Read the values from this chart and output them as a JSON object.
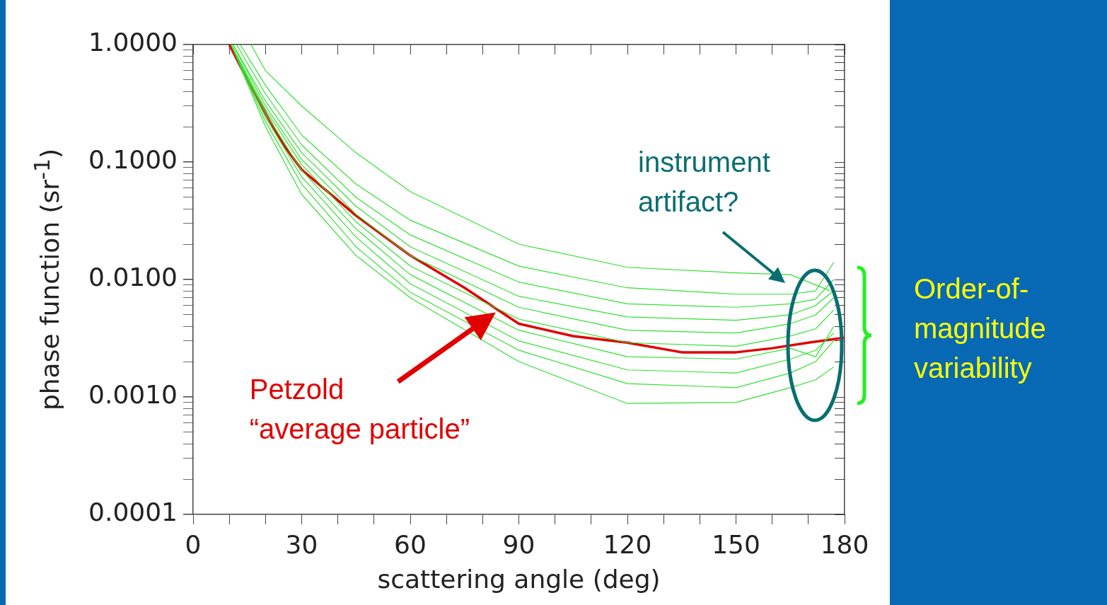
{
  "chart_data": {
    "type": "line",
    "xlabel": "scattering angle (deg)",
    "ylabel": "phase function (sr$^{-1}$)",
    "log": "y",
    "legend": false,
    "grid": false,
    "marker": "none",
    "line_style": "solid",
    "xlim": [
      0,
      180
    ],
    "xticks": [
      0,
      {
        "value": 10,
        "label": null
      },
      {
        "value": 20,
        "label": null
      },
      30,
      {
        "value": 40,
        "label": null
      },
      {
        "value": 50,
        "label": null
      },
      60,
      {
        "value": 70,
        "label": null
      },
      {
        "value": 80,
        "label": null
      },
      90,
      {
        "value": 100,
        "label": null
      },
      {
        "value": 110,
        "label": null
      },
      120,
      {
        "value": 130,
        "label": null
      },
      {
        "value": 140,
        "label": null
      },
      150,
      {
        "value": 160,
        "label": null
      },
      {
        "value": 170,
        "label": null
      },
      180
    ],
    "ylim": [
      0.0001,
      1
    ],
    "yticks": [
      {
        "value": 0.0001,
        "label": "0.0001"
      },
      {
        "value": 0.0002,
        "label": null
      },
      {
        "value": 0.0003,
        "label": null
      },
      {
        "value": 0.0004,
        "label": null
      },
      {
        "value": 0.0005,
        "label": null
      },
      {
        "value": 0.0006,
        "label": null
      },
      {
        "value": 0.0007,
        "label": null
      },
      {
        "value": 0.0008,
        "label": null
      },
      {
        "value": 0.0009,
        "label": null
      },
      {
        "value": 0.001,
        "label": "0.0010"
      },
      {
        "value": 0.002,
        "label": null
      },
      {
        "value": 0.003,
        "label": null
      },
      {
        "value": 0.004,
        "label": null
      },
      {
        "value": 0.005,
        "label": null
      },
      {
        "value": 0.006,
        "label": null
      },
      {
        "value": 0.007,
        "label": null
      },
      {
        "value": 0.008,
        "label": null
      },
      {
        "value": 0.009,
        "label": null
      },
      {
        "value": 0.01,
        "label": "0.0100"
      },
      {
        "value": 0.02,
        "label": null
      },
      {
        "value": 0.03,
        "label": null
      },
      {
        "value": 0.04,
        "label": null
      },
      {
        "value": 0.05,
        "label": null
      },
      {
        "value": 0.06,
        "label": null
      },
      {
        "value": 0.07,
        "label": null
      },
      {
        "value": 0.08,
        "label": null
      },
      {
        "value": 0.09,
        "label": null
      },
      {
        "value": 0.1,
        "label": "0.1000"
      },
      {
        "value": 0.2,
        "label": null
      },
      {
        "value": 0.3,
        "label": null
      },
      {
        "value": 0.4,
        "label": null
      },
      {
        "value": 0.5,
        "label": null
      },
      {
        "value": 0.6,
        "label": null
      },
      {
        "value": 0.7,
        "label": null
      },
      {
        "value": 0.8,
        "label": null
      },
      {
        "value": 0.9,
        "label": null
      },
      {
        "value": 1,
        "label": "1.0000"
      }
    ],
    "series": [
      {
        "color": "#33e033",
        "x": [
          16,
          20,
          30,
          45,
          60,
          90,
          120,
          150,
          165,
          172,
          176
        ],
        "values": [
          1,
          0.6,
          0.3,
          0.12,
          0.056,
          0.02,
          0.0127,
          0.0114,
          0.011,
          0.009,
          0.008
        ]
      },
      {
        "color": "#33e033",
        "x": [
          13,
          20,
          30,
          45,
          60,
          90,
          120,
          150,
          165,
          172,
          177
        ],
        "values": [
          1,
          0.45,
          0.17,
          0.065,
          0.032,
          0.013,
          0.0085,
          0.0075,
          0.0075,
          0.008,
          0.014
        ]
      },
      {
        "color": "#33e033",
        "x": [
          12,
          20,
          30,
          45,
          60,
          90,
          120,
          150,
          165,
          172,
          177
        ],
        "values": [
          1,
          0.38,
          0.14,
          0.05,
          0.024,
          0.0095,
          0.0062,
          0.0058,
          0.0062,
          0.0068,
          0.01
        ]
      },
      {
        "color": "#33e033",
        "x": [
          11,
          20,
          30,
          45,
          60,
          90,
          120,
          150,
          165,
          172,
          177
        ],
        "values": [
          1,
          0.33,
          0.12,
          0.042,
          0.019,
          0.0072,
          0.0048,
          0.0045,
          0.005,
          0.006,
          0.008
        ]
      },
      {
        "color": "#33e033",
        "x": [
          11,
          20,
          30,
          45,
          60,
          90,
          120,
          150,
          165,
          172,
          177
        ],
        "values": [
          1,
          0.3,
          0.105,
          0.036,
          0.016,
          0.0058,
          0.0037,
          0.0035,
          0.0042,
          0.005,
          0.007
        ]
      },
      {
        "color": "#33e033",
        "x": [
          10.5,
          20,
          30,
          45,
          60,
          90,
          120,
          150,
          165,
          172,
          177
        ],
        "values": [
          1,
          0.28,
          0.095,
          0.031,
          0.013,
          0.0046,
          0.0029,
          0.0027,
          0.0033,
          0.0038,
          0.0055
        ]
      },
      {
        "color": "#33e033",
        "x": [
          10.5,
          20,
          30,
          45,
          60,
          90,
          120,
          150,
          165,
          172,
          177
        ],
        "values": [
          1,
          0.26,
          0.085,
          0.027,
          0.011,
          0.0037,
          0.0022,
          0.0021,
          0.0026,
          0.0022,
          0.004
        ]
      },
      {
        "color": "#33e033",
        "x": [
          10.5,
          20,
          30,
          45,
          60,
          90,
          120,
          150,
          165,
          172,
          177
        ],
        "values": [
          1,
          0.24,
          0.075,
          0.023,
          0.0092,
          0.003,
          0.0017,
          0.0016,
          0.0021,
          0.0025,
          0.0035
        ]
      },
      {
        "color": "#33e033",
        "x": [
          10.5,
          20,
          30,
          45,
          60,
          90,
          120,
          150,
          165,
          172,
          177
        ],
        "values": [
          1,
          0.22,
          0.065,
          0.019,
          0.0078,
          0.0025,
          0.0013,
          0.0012,
          0.0016,
          0.002,
          0.003
        ]
      },
      {
        "color": "#33e033",
        "x": [
          10.5,
          20,
          30,
          45,
          60,
          90,
          120,
          150,
          165,
          172,
          177
        ],
        "values": [
          1,
          0.2,
          0.053,
          0.016,
          0.007,
          0.002,
          0.00088,
          0.0009,
          0.0012,
          0.0014,
          0.0018
        ]
      },
      {
        "color": "#e00000",
        "x": [
          10,
          15,
          20,
          25,
          30,
          45,
          60,
          75,
          90,
          105,
          120,
          135,
          150,
          160,
          170,
          180
        ],
        "values": [
          1,
          0.5,
          0.26,
          0.14,
          0.086,
          0.035,
          0.016,
          0.0085,
          0.0042,
          0.0033,
          0.0029,
          0.0024,
          0.0024,
          0.0026,
          0.0029,
          0.0032
        ]
      }
    ],
    "annotations": [
      {
        "text": "Petzold\n“average particle”",
        "x": 84,
        "y": 0.0054
      },
      "instrument\nartifact?",
      "Order-of-magnitude variability"
    ]
  }
}
